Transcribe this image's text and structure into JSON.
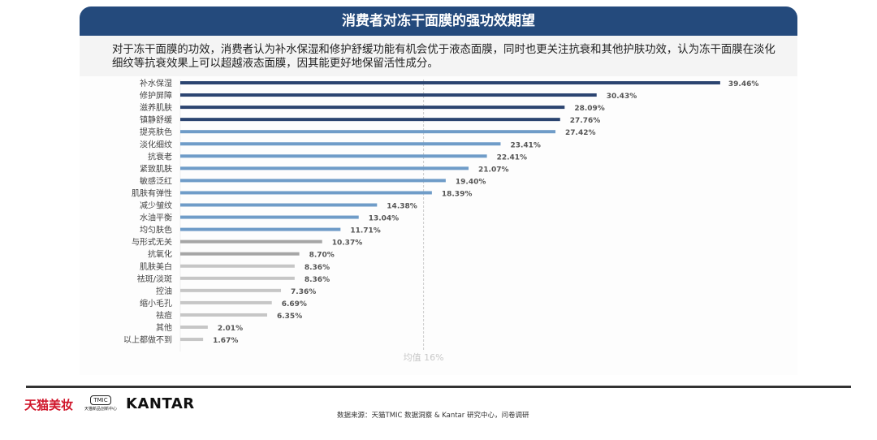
{
  "header": {
    "title": "消费者对冻干面膜的强功效期望"
  },
  "intro": {
    "line1": "对于冻干面膜的功效，消费者认为补水保湿和修护舒缓功能有机会优于液态面膜，同时也更关注抗衰和其他护肤功效，认为冻干面膜在淡化",
    "line2": "细纹等抗衰效果上可以超越液态面膜，因其能更好地保留活性成分。"
  },
  "chart_data": {
    "type": "bar",
    "orientation": "horizontal",
    "categories": [
      "补水保湿",
      "修护屏障",
      "滋养肌肤",
      "镇静舒缓",
      "提亮肤色",
      "淡化细纹",
      "抗衰老",
      "紧致肌肤",
      "敏感泛红",
      "肌肤有弹性",
      "减少皱纹",
      "水油平衡",
      "均匀肤色",
      "与形式无关",
      "抗氧化",
      "肌肤美白",
      "祛斑/淡斑",
      "控油",
      "缩小毛孔",
      "祛痘",
      "其他",
      "以上都做不到"
    ],
    "values": [
      39.46,
      30.43,
      28.09,
      27.76,
      27.42,
      23.41,
      22.41,
      21.07,
      19.4,
      18.39,
      14.38,
      13.04,
      11.71,
      10.37,
      8.7,
      8.36,
      8.36,
      7.36,
      6.69,
      6.35,
      2.01,
      1.67
    ],
    "labels": [
      "39.46%",
      "30.43%",
      "28.09%",
      "27.76%",
      "27.42%",
      "23.41%",
      "22.41%",
      "21.07%",
      "19.40%",
      "18.39%",
      "14.38%",
      "13.04%",
      "11.71%",
      "10.37%",
      "8.70%",
      "8.36%",
      "8.36%",
      "7.36%",
      "6.69%",
      "6.35%",
      "2.01%",
      "1.67%"
    ],
    "colors": [
      "#2b4470",
      "#2b4470",
      "#2b4470",
      "#2b4470",
      "#6f9cc8",
      "#6f9cc8",
      "#6f9cc8",
      "#6f9cc8",
      "#6f9cc8",
      "#6f9cc8",
      "#6f9cc8",
      "#6f9cc8",
      "#6f9cc8",
      "#a6a6a6",
      "#a6a6a6",
      "#c6c6c6",
      "#c6c6c6",
      "#c6c6c6",
      "#c6c6c6",
      "#c6c6c6",
      "#c6c6c6",
      "#c6c6c6"
    ],
    "reference_line": {
      "value": 16,
      "label": "均值 16%",
      "style": "dashed"
    },
    "grid": false
  },
  "footer": {
    "logo_tmall": "天猫美妆",
    "logo_tmic": "TMIC",
    "logo_tmic_sub": "天猫新品创新中心",
    "logo_kantar": "KANTAR",
    "source": "数据来源：天猫TMIC 数据洞察 & Kantar 研究中心，问卷调研"
  }
}
